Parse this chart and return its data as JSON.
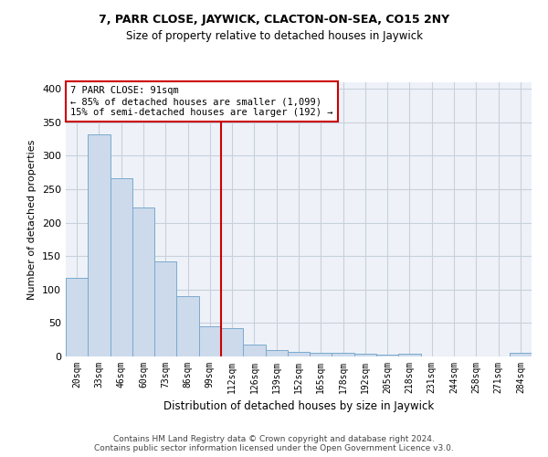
{
  "title": "7, PARR CLOSE, JAYWICK, CLACTON-ON-SEA, CO15 2NY",
  "subtitle": "Size of property relative to detached houses in Jaywick",
  "xlabel": "Distribution of detached houses by size in Jaywick",
  "ylabel": "Number of detached properties",
  "bar_color": "#ccdaeb",
  "bar_edge_color": "#7aaace",
  "grid_color": "#c8d0dc",
  "background_color": "#eef2f8",
  "categories": [
    "20sqm",
    "33sqm",
    "46sqm",
    "60sqm",
    "73sqm",
    "86sqm",
    "99sqm",
    "112sqm",
    "126sqm",
    "139sqm",
    "152sqm",
    "165sqm",
    "178sqm",
    "192sqm",
    "205sqm",
    "218sqm",
    "231sqm",
    "244sqm",
    "258sqm",
    "271sqm",
    "284sqm"
  ],
  "values": [
    117,
    332,
    267,
    223,
    142,
    90,
    45,
    42,
    18,
    10,
    7,
    6,
    6,
    4,
    3,
    4,
    0,
    0,
    0,
    0,
    5
  ],
  "ylim": [
    0,
    410
  ],
  "yticks": [
    0,
    50,
    100,
    150,
    200,
    250,
    300,
    350,
    400
  ],
  "annotation_text": "7 PARR CLOSE: 91sqm\n← 85% of detached houses are smaller (1,099)\n15% of semi-detached houses are larger (192) →",
  "vline_x_idx": 6.5,
  "annotation_box_color": "#ffffff",
  "annotation_box_edge": "#cc0000",
  "footer_text": "Contains HM Land Registry data © Crown copyright and database right 2024.\nContains public sector information licensed under the Open Government Licence v3.0.",
  "vline_color": "#cc0000",
  "title_fontsize": 9,
  "subtitle_fontsize": 8.5
}
